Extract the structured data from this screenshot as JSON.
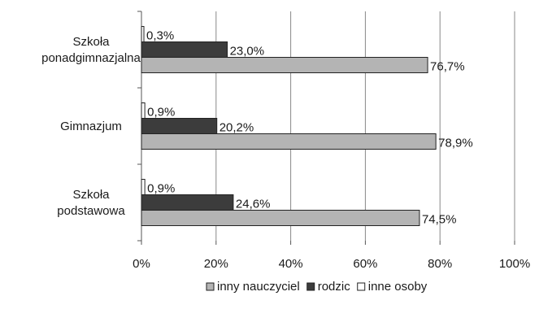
{
  "chart_data": {
    "type": "bar",
    "orientation": "horizontal",
    "categories": [
      [
        "Szkoła",
        "ponadgimnazjalna"
      ],
      [
        "Gimnazjum"
      ],
      [
        "Szkoła",
        "podstawowa"
      ]
    ],
    "series": [
      {
        "name": "inne osoby",
        "values": [
          0.3,
          0.9,
          0.9
        ],
        "labels": [
          "0,3%",
          "0,9%",
          "0,9%"
        ],
        "color": "#ffffff"
      },
      {
        "name": "rodzic",
        "values": [
          23.0,
          20.2,
          24.6
        ],
        "labels": [
          "23,0%",
          "20,2%",
          "24,6%"
        ],
        "color": "#3c3c3c"
      },
      {
        "name": "inny nauczyciel",
        "values": [
          76.7,
          78.9,
          74.5
        ],
        "labels": [
          "76,7%",
          "78,9%",
          "74,5%"
        ],
        "color": "#b4b4b4"
      }
    ],
    "xlim": [
      0,
      100
    ],
    "xticks": [
      "0%",
      "20%",
      "40%",
      "60%",
      "80%",
      "100%"
    ],
    "grid": true,
    "legend": {
      "placement": "bottom",
      "entries": [
        {
          "name": "inny nauczyciel",
          "color": "#b4b4b4"
        },
        {
          "name": "rodzic",
          "color": "#3c3c3c"
        },
        {
          "name": "inne osoby",
          "color": "#ffffff"
        }
      ]
    },
    "title": "",
    "xlabel": "",
    "ylabel": ""
  }
}
